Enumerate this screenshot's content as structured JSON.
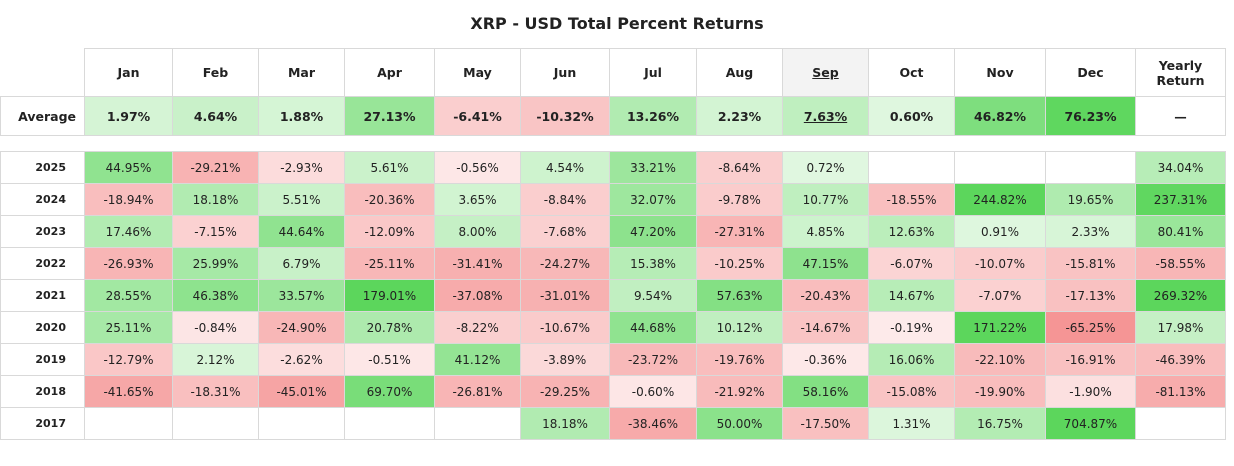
{
  "title": "XRP - USD Total Percent Returns",
  "columns": [
    "Jan",
    "Feb",
    "Mar",
    "Apr",
    "May",
    "Jun",
    "Jul",
    "Aug",
    "Sep",
    "Oct",
    "Nov",
    "Dec",
    "Yearly Return"
  ],
  "highlight_column": "Sep",
  "average": {
    "label": "Average",
    "values": [
      "1.97%",
      "4.64%",
      "1.88%",
      "27.13%",
      "-6.41%",
      "-10.32%",
      "13.26%",
      "2.23%",
      "7.63%",
      "0.60%",
      "46.82%",
      "76.23%",
      "—"
    ]
  },
  "colors": {
    "positive": "#5cd65c",
    "negative": "#f27a7a",
    "neutral": "#ffffff"
  },
  "chart_data": {
    "type": "table",
    "title": "XRP - USD Total Percent Returns",
    "columns": [
      "Jan",
      "Feb",
      "Mar",
      "Apr",
      "May",
      "Jun",
      "Jul",
      "Aug",
      "Sep",
      "Oct",
      "Nov",
      "Dec",
      "Yearly Return"
    ],
    "rows": [
      {
        "year": "2025",
        "values": [
          "44.95%",
          "-29.21%",
          "-2.93%",
          "5.61%",
          "-0.56%",
          "4.54%",
          "33.21%",
          "-8.64%",
          "0.72%",
          "",
          "",
          "",
          "34.04%"
        ]
      },
      {
        "year": "2024",
        "values": [
          "-18.94%",
          "18.18%",
          "5.51%",
          "-20.36%",
          "3.65%",
          "-8.84%",
          "32.07%",
          "-9.78%",
          "10.77%",
          "-18.55%",
          "244.82%",
          "19.65%",
          "237.31%"
        ]
      },
      {
        "year": "2023",
        "values": [
          "17.46%",
          "-7.15%",
          "44.64%",
          "-12.09%",
          "8.00%",
          "-7.68%",
          "47.20%",
          "-27.31%",
          "4.85%",
          "12.63%",
          "0.91%",
          "2.33%",
          "80.41%"
        ]
      },
      {
        "year": "2022",
        "values": [
          "-26.93%",
          "25.99%",
          "6.79%",
          "-25.11%",
          "-31.41%",
          "-24.27%",
          "15.38%",
          "-10.25%",
          "47.15%",
          "-6.07%",
          "-10.07%",
          "-15.81%",
          "-58.55%"
        ]
      },
      {
        "year": "2021",
        "values": [
          "28.55%",
          "46.38%",
          "33.57%",
          "179.01%",
          "-37.08%",
          "-31.01%",
          "9.54%",
          "57.63%",
          "-20.43%",
          "14.67%",
          "-7.07%",
          "-17.13%",
          "269.32%"
        ]
      },
      {
        "year": "2020",
        "values": [
          "25.11%",
          "-0.84%",
          "-24.90%",
          "20.78%",
          "-8.22%",
          "-10.67%",
          "44.68%",
          "10.12%",
          "-14.67%",
          "-0.19%",
          "171.22%",
          "-65.25%",
          "17.98%"
        ]
      },
      {
        "year": "2019",
        "values": [
          "-12.79%",
          "2.12%",
          "-2.62%",
          "-0.51%",
          "41.12%",
          "-3.89%",
          "-23.72%",
          "-19.76%",
          "-0.36%",
          "16.06%",
          "-22.10%",
          "-16.91%",
          "-46.39%"
        ]
      },
      {
        "year": "2018",
        "values": [
          "-41.65%",
          "-18.31%",
          "-45.01%",
          "69.70%",
          "-26.81%",
          "-29.25%",
          "-0.60%",
          "-21.92%",
          "58.16%",
          "-15.08%",
          "-19.90%",
          "-1.90%",
          "-81.13%"
        ]
      },
      {
        "year": "2017",
        "values": [
          "",
          "",
          "",
          "",
          "",
          "18.18%",
          "-38.46%",
          "50.00%",
          "-17.50%",
          "1.31%",
          "16.75%",
          "704.87%",
          ""
        ]
      }
    ]
  }
}
